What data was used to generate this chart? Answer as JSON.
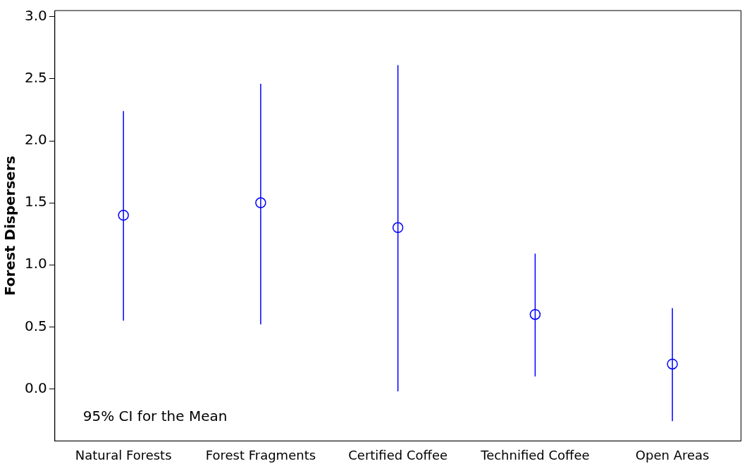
{
  "chart_data": {
    "type": "scatter",
    "ylabel": "Forest Dispersers",
    "categories": [
      "Natural Forests",
      "Forest Fragments",
      "Certified Coffee",
      "Technified Coffee",
      "Open Areas"
    ],
    "series": [
      {
        "color": "#0000ff",
        "values": [
          1.4,
          1.5,
          1.3,
          0.6,
          0.2
        ],
        "errors": [
          [
            0.55,
            2.24
          ],
          [
            0.52,
            2.46
          ],
          [
            -0.02,
            2.61
          ],
          [
            0.1,
            1.09
          ],
          [
            -0.26,
            0.65
          ]
        ]
      }
    ],
    "ylim": [
      -0.42,
      3.05
    ],
    "yticks": [
      {
        "value": 0,
        "label": "0.0"
      },
      0.5,
      {
        "value": 1,
        "label": "1.0"
      },
      1.5,
      {
        "value": 2,
        "label": "2.0"
      },
      2.5,
      {
        "value": 3,
        "label": "3.0"
      }
    ],
    "grid": false,
    "legend": false,
    "marker": "circle",
    "annotations": [
      "95% CI for the Mean"
    ]
  }
}
